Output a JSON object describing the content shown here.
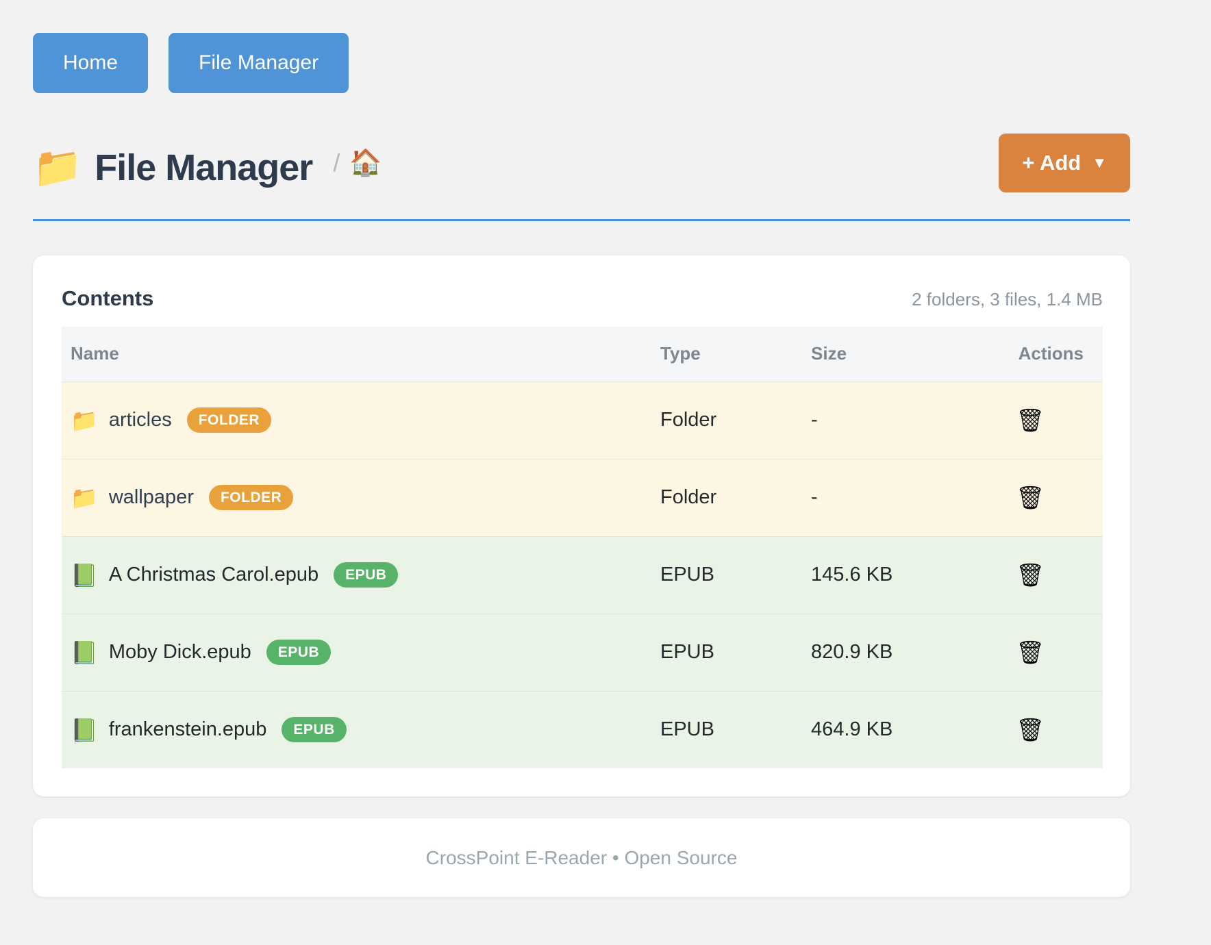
{
  "nav": {
    "buttons": [
      {
        "label": "Home"
      },
      {
        "label": "File Manager"
      }
    ]
  },
  "header": {
    "title_icon": "📁",
    "title": "File Manager",
    "breadcrumb_separator": "/",
    "breadcrumb_home_icon": "🏠",
    "add_button": {
      "label": "+ Add",
      "caret": "▼"
    }
  },
  "contents": {
    "title": "Contents",
    "summary": "2 folders, 3 files, 1.4 MB",
    "columns": [
      "Name",
      "Type",
      "Size",
      "Actions"
    ],
    "action_icon": "🗑",
    "rows": [
      {
        "kind": "folder",
        "icon": "📁",
        "name": "articles",
        "badge": "FOLDER",
        "type": "Folder",
        "size": "-"
      },
      {
        "kind": "folder",
        "icon": "📁",
        "name": "wallpaper",
        "badge": "FOLDER",
        "type": "Folder",
        "size": "-"
      },
      {
        "kind": "file",
        "icon": "📗",
        "name": "A Christmas Carol.epub",
        "badge": "EPUB",
        "type": "EPUB",
        "size": "145.6 KB"
      },
      {
        "kind": "file",
        "icon": "📗",
        "name": "Moby Dick.epub",
        "badge": "EPUB",
        "type": "EPUB",
        "size": "820.9 KB"
      },
      {
        "kind": "file",
        "icon": "📗",
        "name": "frankenstein.epub",
        "badge": "EPUB",
        "type": "EPUB",
        "size": "464.9 KB"
      }
    ]
  },
  "footer": {
    "text": "CrossPoint E-Reader • Open Source"
  },
  "colors": {
    "page_background": "#f2f2f3",
    "primary_blue": "#5094d8",
    "rule_blue": "#4a8fd8",
    "add_orange": "#d9833e",
    "badge_orange": "#e9a23b",
    "badge_green": "#57b368",
    "folder_row_background": "#fdf6e2",
    "file_row_background": "#e9f4e6",
    "table_header_background": "#f4f6f8",
    "title_navy": "#2d3b4d"
  }
}
